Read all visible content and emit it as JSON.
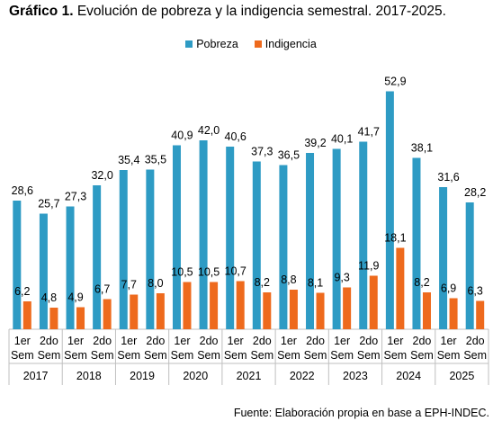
{
  "title": {
    "prefix": "Gráfico 1.",
    "text": "Evolución de pobreza y la indigencia semestral. 2017-2025."
  },
  "source": "Fuente: Elaboración propia en base a EPH-INDEC.",
  "colors": {
    "pobreza": "#2e9bc4",
    "indigencia": "#ee6a1d"
  },
  "chart_data": {
    "type": "bar",
    "legend_position": "top-center",
    "grid": false,
    "ylim": [
      0,
      56
    ],
    "years": [
      "2017",
      "2018",
      "2019",
      "2020",
      "2021",
      "2022",
      "2023",
      "2024",
      "2025"
    ],
    "semester_labels": [
      [
        "1er",
        "Sem"
      ],
      [
        "2do",
        "Sem"
      ]
    ],
    "series": [
      {
        "name": "Pobreza",
        "values": [
          28.6,
          25.7,
          27.3,
          32.0,
          35.4,
          35.5,
          40.9,
          42.0,
          40.6,
          37.3,
          36.5,
          39.2,
          40.1,
          41.7,
          52.9,
          38.1,
          31.6,
          28.2
        ],
        "labels": [
          "28,6",
          "25,7",
          "27,3",
          "32,0",
          "35,4",
          "35,5",
          "40,9",
          "42,0",
          "40,6",
          "37,3",
          "36,5",
          "39,2",
          "40,1",
          "41,7",
          "52,9",
          "38,1",
          "31,6",
          "28,2"
        ]
      },
      {
        "name": "Indigencia",
        "values": [
          6.2,
          4.8,
          4.9,
          6.7,
          7.7,
          8.0,
          10.5,
          10.5,
          10.7,
          8.2,
          8.8,
          8.1,
          9.3,
          11.9,
          18.1,
          8.2,
          6.9,
          6.3
        ],
        "labels": [
          "6,2",
          "4,8",
          "4,9",
          "6,7",
          "7,7",
          "8,0",
          "10,5",
          "10,5",
          "10,7",
          "8,2",
          "8,8",
          "8,1",
          "9,3",
          "11,9",
          "18,1",
          "8,2",
          "6,9",
          "6,3"
        ]
      }
    ]
  }
}
